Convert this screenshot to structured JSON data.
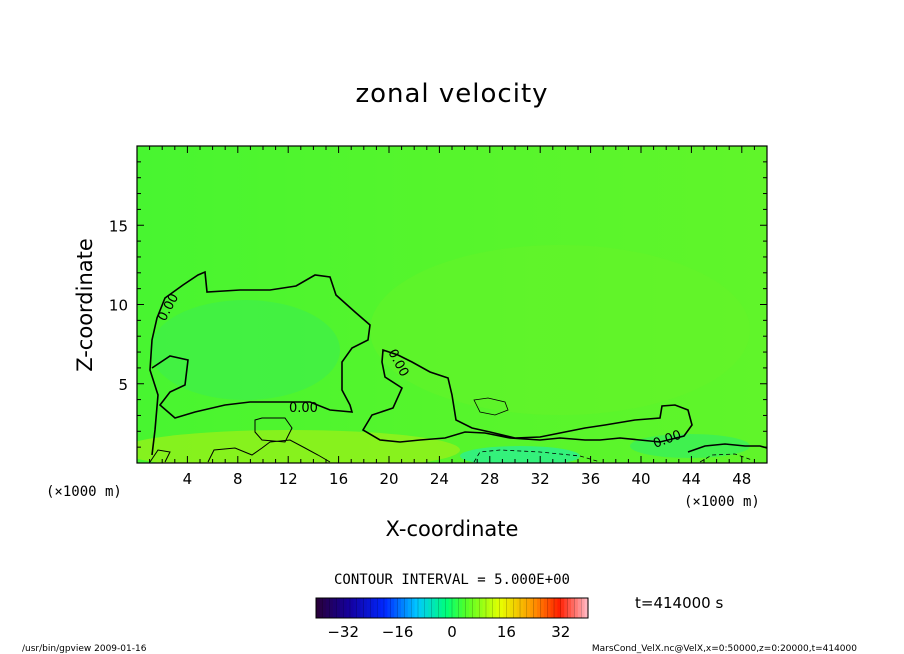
{
  "chart_data": {
    "type": "heatmap",
    "title": "zonal velocity",
    "xlabel": "X-coordinate",
    "ylabel": "Z-coordinate",
    "x_unit": "(×1000 m)",
    "xlim": [
      0,
      50
    ],
    "ylim": [
      0,
      20
    ],
    "x_ticks": [
      4,
      8,
      12,
      16,
      20,
      24,
      28,
      32,
      36,
      40,
      44,
      48
    ],
    "y_ticks": [
      5,
      10,
      15
    ],
    "contour_interval": "CONTOUR INTERVAL = 5.000E+00",
    "contour_labels": [
      "0.00",
      "0.00",
      "0.00",
      "0.00"
    ],
    "colorbar": {
      "ticks": [
        -32,
        -16,
        0,
        16,
        32
      ],
      "range": [
        -40,
        40
      ],
      "dominant_color": "#4dff2a"
    },
    "time_label": "t=414000 s"
  },
  "footer": {
    "left": "/usr/bin/gpview   2009-01-16",
    "right": "MarsCond_VelX.nc@VelX,x=0:50000,z=0:20000,t=414000"
  }
}
